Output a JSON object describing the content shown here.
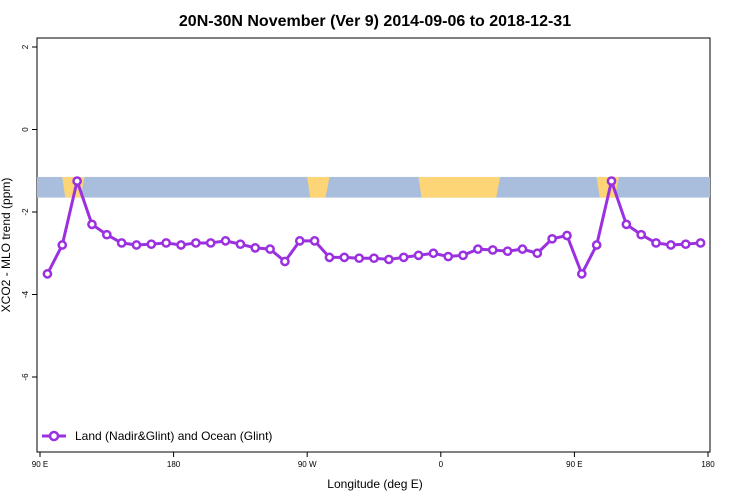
{
  "chart_data": {
    "type": "line",
    "title": "20N-30N November (Ver 9)   2014-09-06 to 2018-12-31",
    "xlabel": "Longitude (deg E)",
    "ylabel": "XCO2 - MLO trend (ppm)",
    "xlim": [
      90,
      540
    ],
    "ylim": [
      -7.9,
      2.2
    ],
    "x_ticks": [
      {
        "value": 90,
        "label": "90 E"
      },
      {
        "value": 180,
        "label": "180"
      },
      {
        "value": 270,
        "label": "90 W"
      },
      {
        "value": 360,
        "label": "0"
      },
      {
        "value": 450,
        "label": "90 E"
      },
      {
        "value": 540,
        "label": "180"
      }
    ],
    "y_ticks": [
      {
        "value": 2,
        "label": "2"
      },
      {
        "value": 0,
        "label": "0"
      },
      {
        "value": -2,
        "label": "-2"
      },
      {
        "value": -4,
        "label": "-4"
      },
      {
        "value": -6,
        "label": "-6"
      }
    ],
    "map_band": {
      "y_top": -1.15,
      "y_bottom": -1.65,
      "ocean_color": "#a9bedc",
      "land_color": "#fdd577"
    },
    "series": [
      {
        "name": "Land (Nadir&Glint) and Ocean (Glint)",
        "color": "#9b30e0",
        "x": [
          95,
          105,
          115,
          125,
          135,
          145,
          155,
          165,
          175,
          185,
          195,
          205,
          215,
          225,
          235,
          245,
          255,
          265,
          275,
          285,
          295,
          305,
          315,
          325,
          335,
          345,
          355,
          365,
          375,
          385,
          395,
          405,
          415,
          425,
          435,
          445,
          455,
          465,
          475,
          485,
          495,
          505,
          515,
          525,
          535
        ],
        "y": [
          -3.5,
          -2.8,
          -1.25,
          -2.3,
          -2.55,
          -2.75,
          -2.8,
          -2.78,
          -2.75,
          -2.8,
          -2.75,
          -2.75,
          -2.7,
          -2.78,
          -2.87,
          -2.9,
          -3.2,
          -2.7,
          -2.7,
          -3.1,
          -3.1,
          -3.12,
          -3.12,
          -3.15,
          -3.1,
          -3.05,
          -3.0,
          -3.08,
          -3.05,
          -2.9,
          -2.92,
          -2.95,
          -2.9,
          -3.0,
          -2.65,
          -2.57,
          -3.5,
          -2.8,
          -1.25,
          -2.3,
          -2.55,
          -2.75,
          -2.8,
          -2.78,
          -2.75
        ]
      }
    ]
  }
}
